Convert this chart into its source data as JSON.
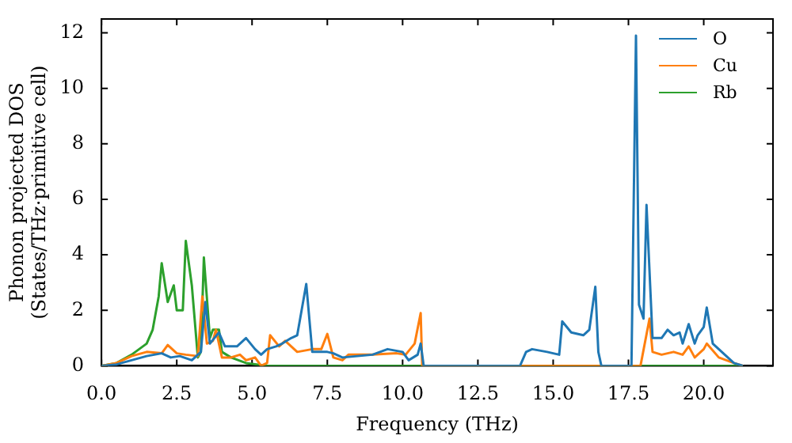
{
  "chart_data": {
    "type": "line",
    "xlabel": "Frequency (THz)",
    "ylabel": "Phonon projected DOS\n(States/THz·primitive cell)",
    "xlim": [
      0,
      22.3
    ],
    "ylim": [
      0,
      12.5
    ],
    "xticks": [
      {
        "value": 0,
        "label": "0.0"
      },
      {
        "value": 2.5,
        "label": "2.5"
      },
      {
        "value": 5,
        "label": "5.0"
      },
      {
        "value": 7.5,
        "label": "7.5"
      },
      {
        "value": 10,
        "label": "10.0"
      },
      {
        "value": 12.5,
        "label": "12.5"
      },
      {
        "value": 15,
        "label": "15.0"
      },
      {
        "value": 17.5,
        "label": "17.5"
      },
      {
        "value": 20,
        "label": "20.0"
      }
    ],
    "yticks": [
      0,
      2,
      4,
      6,
      8,
      10,
      12
    ],
    "grid": false,
    "legend": "top right",
    "marker": "none",
    "line_style": "solid",
    "series": [
      {
        "name": "O",
        "color": "#1f77b4",
        "x": [
          0,
          0.5,
          1,
          1.5,
          2,
          2.3,
          2.6,
          3,
          3.3,
          3.45,
          3.6,
          3.9,
          4.1,
          4.5,
          4.8,
          5.1,
          5.3,
          5.5,
          5.8,
          6,
          6.3,
          6.5,
          6.8,
          7,
          7.5,
          7.7,
          8,
          8.5,
          9,
          9.5,
          10,
          10.2,
          10.5,
          10.6,
          10.7,
          13.9,
          14.1,
          14.3,
          14.8,
          15.2,
          15.3,
          15.6,
          16,
          16.2,
          16.4,
          16.5,
          16.6,
          17.6,
          17.75,
          17.85,
          18,
          18.1,
          18.3,
          18.6,
          18.8,
          19,
          19.2,
          19.3,
          19.5,
          19.7,
          19.8,
          20,
          20.1,
          20.3,
          20.7,
          21,
          21.3
        ],
        "values": [
          0,
          0.05,
          0.2,
          0.35,
          0.45,
          0.3,
          0.35,
          0.2,
          0.5,
          2.3,
          0.8,
          1.2,
          0.7,
          0.7,
          1,
          0.6,
          0.4,
          0.6,
          0.7,
          0.8,
          1,
          1.1,
          2.95,
          0.5,
          0.5,
          0.45,
          0.3,
          0.35,
          0.4,
          0.6,
          0.5,
          0.2,
          0.4,
          0.8,
          0,
          0,
          0.5,
          0.6,
          0.5,
          0.4,
          1.6,
          1.2,
          1.1,
          1.3,
          2.85,
          0.5,
          0,
          0,
          11.9,
          2.2,
          1.7,
          5.8,
          1,
          1,
          1.3,
          1.1,
          1.2,
          0.8,
          1.5,
          0.8,
          1.1,
          1.4,
          2.1,
          0.8,
          0.4,
          0.1,
          0
        ]
      },
      {
        "name": "Cu",
        "color": "#ff7f0e",
        "x": [
          0,
          0.5,
          1,
          1.5,
          2,
          2.2,
          2.5,
          2.8,
          3.2,
          3.35,
          3.5,
          3.7,
          3.8,
          4,
          4.3,
          4.6,
          4.8,
          5.1,
          5.3,
          5.5,
          5.6,
          5.9,
          6.1,
          6.3,
          6.5,
          7,
          7.3,
          7.5,
          7.7,
          8,
          8.2,
          9,
          9.8,
          10.1,
          10.4,
          10.6,
          10.65,
          17.9,
          18.2,
          18.3,
          18.6,
          19,
          19.3,
          19.5,
          19.7,
          20,
          20.1,
          20.5,
          21,
          21.3
        ],
        "values": [
          0,
          0.1,
          0.35,
          0.5,
          0.45,
          0.75,
          0.45,
          0.4,
          0.35,
          2.5,
          0.8,
          0.9,
          1.3,
          0.3,
          0.3,
          0.4,
          0.2,
          0.3,
          0,
          0.1,
          1.1,
          0.7,
          0.9,
          0.7,
          0.5,
          0.6,
          0.6,
          1.15,
          0.3,
          0.2,
          0.4,
          0.4,
          0.45,
          0.4,
          0.8,
          1.9,
          0,
          0,
          1.7,
          0.5,
          0.4,
          0.5,
          0.4,
          0.7,
          0.3,
          0.6,
          0.8,
          0.3,
          0.1,
          0
        ]
      },
      {
        "name": "Rb",
        "color": "#2ca02c",
        "x": [
          0,
          0.5,
          1,
          1.5,
          1.7,
          1.9,
          2,
          2.2,
          2.4,
          2.5,
          2.7,
          2.8,
          3,
          3.2,
          3.3,
          3.4,
          3.6,
          3.7,
          3.9,
          4,
          4.3,
          4.8,
          5.5,
          21.3
        ],
        "values": [
          0,
          0.1,
          0.4,
          0.8,
          1.3,
          2.5,
          3.7,
          2.3,
          2.9,
          2,
          2,
          4.5,
          2.9,
          0.3,
          0.5,
          3.9,
          1,
          1.3,
          1.3,
          0.5,
          0.3,
          0.1,
          0,
          0
        ]
      }
    ]
  }
}
